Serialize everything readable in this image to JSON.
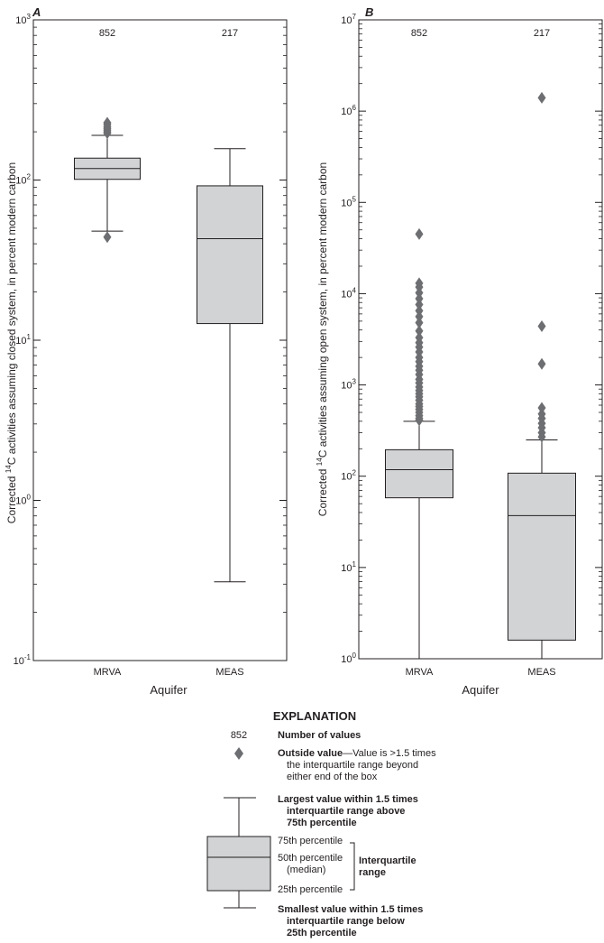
{
  "chart_data": [
    {
      "type": "box",
      "panel_label": "A",
      "scale": "log",
      "ylim": [
        0.1,
        1000
      ],
      "ylabel_prefix": "Corrected ",
      "ylabel_sup": "14",
      "ylabel_suffix": "C activities assuming closed system, in percent modern carbon",
      "xlabel": "Aquifer",
      "y_ticks": [
        {
          "base": "10",
          "exp": "-1",
          "value": 0.1
        },
        {
          "base": "10",
          "exp": "0",
          "value": 1
        },
        {
          "base": "10",
          "exp": "1",
          "value": 10
        },
        {
          "base": "10",
          "exp": "2",
          "value": 100
        },
        {
          "base": "10",
          "exp": "3",
          "value": 1000
        }
      ],
      "boxes": [
        {
          "category": "MRVA",
          "count": "852",
          "whisker_low": 48,
          "q1": 101,
          "median": 118,
          "q3": 137,
          "whisker_high": 190,
          "outliers": [
            44,
            196,
            200,
            205,
            210,
            215,
            222,
            228
          ]
        },
        {
          "category": "MEAS",
          "count": "217",
          "whisker_low": 0.31,
          "q1": 12.7,
          "median": 43,
          "q3": 92,
          "whisker_high": 157,
          "outliers": []
        }
      ]
    },
    {
      "type": "box",
      "panel_label": "B",
      "scale": "log",
      "ylim": [
        1,
        10000000
      ],
      "ylabel_prefix": "Corrected ",
      "ylabel_sup": "14",
      "ylabel_suffix": "C activities assuming open system, in percent modern carbon",
      "xlabel": "Aquifer",
      "y_ticks": [
        {
          "base": "10",
          "exp": "0",
          "value": 1
        },
        {
          "base": "10",
          "exp": "1",
          "value": 10
        },
        {
          "base": "10",
          "exp": "2",
          "value": 100
        },
        {
          "base": "10",
          "exp": "3",
          "value": 1000
        },
        {
          "base": "10",
          "exp": "4",
          "value": 10000
        },
        {
          "base": "10",
          "exp": "5",
          "value": 100000
        },
        {
          "base": "10",
          "exp": "6",
          "value": 1000000
        },
        {
          "base": "10",
          "exp": "7",
          "value": 10000000
        }
      ],
      "boxes": [
        {
          "category": "MRVA",
          "count": "852",
          "whisker_low": 1,
          "q1": 58,
          "median": 118,
          "q3": 195,
          "whisker_high": 400,
          "outliers": [
            410,
            430,
            460,
            500,
            540,
            580,
            620,
            680,
            740,
            800,
            870,
            950,
            1050,
            1150,
            1300,
            1450,
            1600,
            1800,
            2000,
            2300,
            2600,
            2900,
            3300,
            3900,
            4800,
            5600,
            6500,
            7600,
            8800,
            10200,
            11800,
            13000,
            45000
          ]
        },
        {
          "category": "MEAS",
          "count": "217",
          "whisker_low": 1,
          "q1": 1.6,
          "median": 37,
          "q3": 108,
          "whisker_high": 250,
          "outliers": [
            270,
            300,
            340,
            380,
            430,
            480,
            560,
            1700,
            4400,
            1400000
          ]
        }
      ]
    }
  ],
  "explanation": {
    "title": "EXPLANATION",
    "count_example": "852",
    "count_label": "Number of values",
    "outside_bold": "Outside value",
    "outside_rest_1": "—Value is >1.5 times",
    "outside_rest_2": "the interquartile range beyond",
    "outside_rest_3": "either end of the box",
    "largest_1": "Largest value within 1.5 times",
    "largest_2": "interquartile range above",
    "largest_3": "75th percentile",
    "p75": "75th percentile",
    "p50": "50th percentile",
    "p50_sub": "(median)",
    "p25": "25th percentile",
    "iqr_1": "Interquartile",
    "iqr_2": "range",
    "smallest_1": "Smallest value within 1.5 times",
    "smallest_2": "interquartile range below",
    "smallest_3": "25th percentile"
  },
  "colors": {
    "box_fill": "#d1d3d4",
    "line": "#231f20",
    "outlier": "#6d6e71"
  }
}
